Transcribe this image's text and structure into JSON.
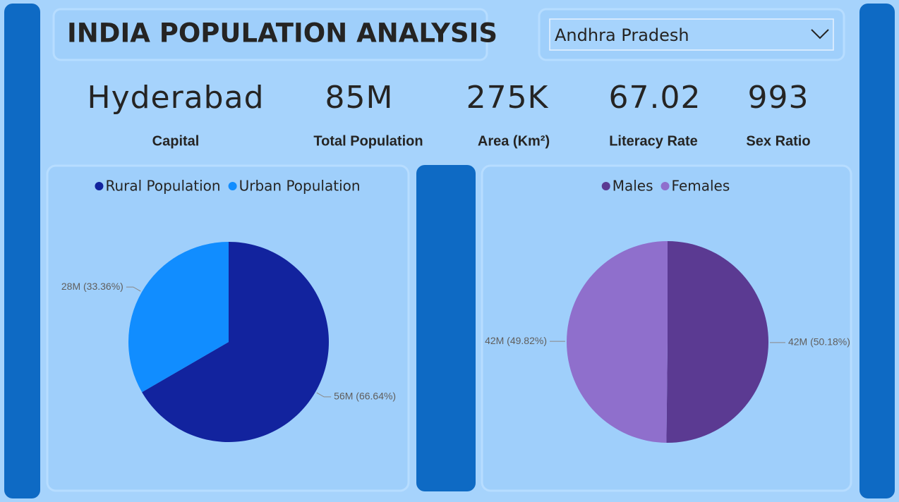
{
  "header": {
    "title": "INDIA POPULATION ANALYSIS"
  },
  "slicer": {
    "value": "Andhra Pradesh"
  },
  "kpis": [
    {
      "value": "Hyderabad",
      "label": "Capital"
    },
    {
      "value": "85M",
      "label": "Total Population"
    },
    {
      "value": "275K",
      "label": "Area (Km²)"
    },
    {
      "value": "67.02",
      "label": "Literacy Rate"
    },
    {
      "value": "993",
      "label": "Sex Ratio"
    }
  ],
  "chart_data": [
    {
      "type": "pie",
      "categories": [
        "Rural Population",
        "Urban Population"
      ],
      "values": [
        66.64,
        33.36
      ],
      "value_labels": [
        "56M (66.64%)",
        "28M (33.36%)"
      ],
      "colors": [
        "#12239e",
        "#118dff"
      ]
    },
    {
      "type": "pie",
      "categories": [
        "Males",
        "Females"
      ],
      "values": [
        50.18,
        49.82
      ],
      "value_labels": [
        "42M (50.18%)",
        "42M (49.82%)"
      ],
      "colors": [
        "#5b3a92",
        "#8f6fcc"
      ]
    }
  ]
}
